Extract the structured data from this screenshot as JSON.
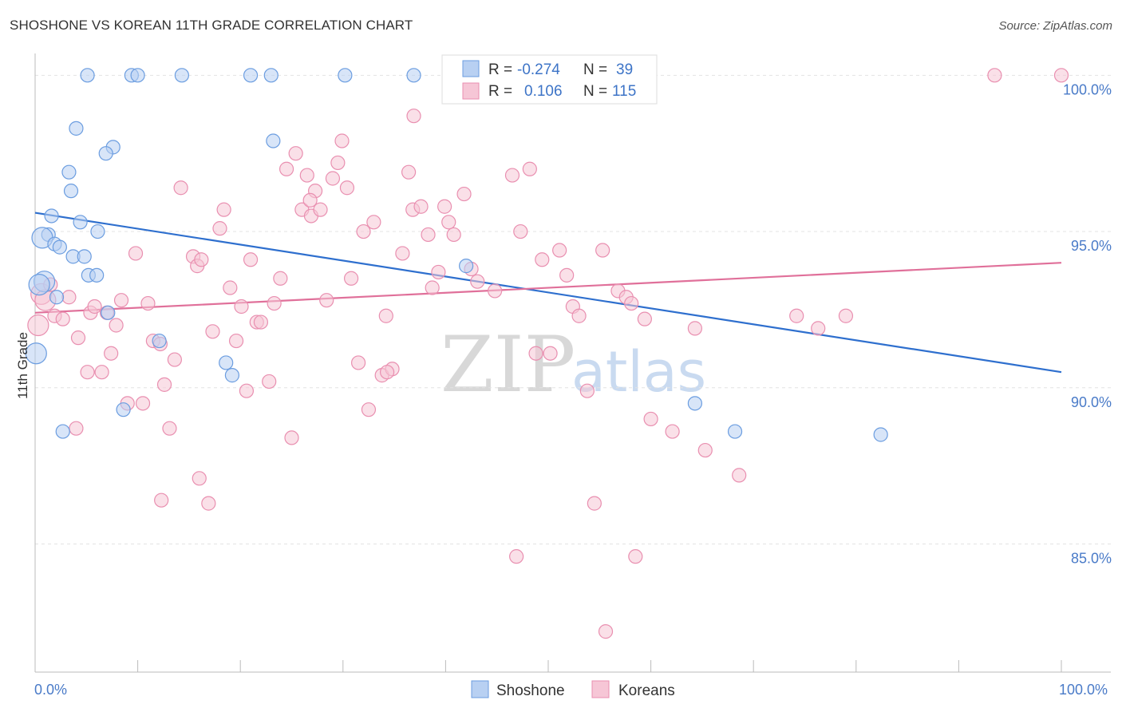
{
  "title": "SHOSHONE VS KOREAN 11TH GRADE CORRELATION CHART",
  "source": "Source: ZipAtlas.com",
  "watermark": {
    "zip": "ZIP",
    "atlas": "atlas"
  },
  "chart_data": {
    "type": "scatter",
    "ylabel": "11th Grade",
    "xlim": [
      0,
      100
    ],
    "ylim": [
      80.9,
      100.8
    ],
    "x_tick_labels": [
      "0.0%",
      "100.0%"
    ],
    "y_ticks": [
      {
        "value": 100,
        "label": "100.0%"
      },
      {
        "value": 95,
        "label": "95.0%"
      },
      {
        "value": 90,
        "label": "90.0%"
      },
      {
        "value": 85,
        "label": "85.0%"
      }
    ],
    "grid": true,
    "legend": {
      "placement": "top-center",
      "rows": [
        {
          "r_label": "R =",
          "r_value": "-0.274",
          "n_label": "N =",
          "n_value": "39"
        },
        {
          "r_label": "R =",
          "r_value": "0.106",
          "n_label": "N =",
          "n_value": "115"
        }
      ]
    },
    "series": [
      {
        "name": "Shoshone",
        "color": "#6b9de0",
        "fill": "#b8d0f2",
        "trend": {
          "x": [
            0,
            100
          ],
          "y": [
            95.6,
            90.5
          ],
          "color": "#2e6fce"
        },
        "points": [
          [
            5.1,
            100
          ],
          [
            9.4,
            100
          ],
          [
            10.0,
            100
          ],
          [
            14.3,
            100
          ],
          [
            21.0,
            100
          ],
          [
            23.0,
            100
          ],
          [
            30.2,
            100
          ],
          [
            36.9,
            100
          ],
          [
            4.0,
            98.3
          ],
          [
            7.6,
            97.7
          ],
          [
            6.9,
            97.5
          ],
          [
            23.2,
            97.9
          ],
          [
            3.3,
            96.9
          ],
          [
            3.5,
            96.3
          ],
          [
            1.6,
            95.5
          ],
          [
            4.4,
            95.3
          ],
          [
            6.1,
            95.0
          ],
          [
            1.3,
            94.9
          ],
          [
            0.7,
            94.8
          ],
          [
            1.9,
            94.6
          ],
          [
            2.4,
            94.5
          ],
          [
            3.7,
            94.2
          ],
          [
            4.8,
            94.2
          ],
          [
            5.2,
            93.6
          ],
          [
            6.0,
            93.6
          ],
          [
            0.9,
            93.4
          ],
          [
            2.1,
            92.9
          ],
          [
            7.1,
            92.4
          ],
          [
            12.1,
            91.5
          ],
          [
            18.6,
            90.8
          ],
          [
            19.2,
            90.4
          ],
          [
            8.6,
            89.3
          ],
          [
            2.7,
            88.6
          ],
          [
            42.0,
            93.9
          ],
          [
            64.3,
            89.5
          ],
          [
            68.2,
            88.6
          ],
          [
            82.4,
            88.5
          ],
          [
            0.1,
            91.1
          ],
          [
            0.4,
            93.3
          ]
        ]
      },
      {
        "name": "Koreans",
        "color": "#e98fb0",
        "fill": "#f6c6d6",
        "trend": {
          "x": [
            0,
            100
          ],
          "y": [
            92.4,
            94.0
          ],
          "color": "#e0709a"
        },
        "points": [
          [
            0.3,
            92.0
          ],
          [
            0.6,
            93.0
          ],
          [
            1.0,
            92.8
          ],
          [
            1.5,
            93.3
          ],
          [
            1.9,
            92.3
          ],
          [
            2.7,
            92.2
          ],
          [
            3.3,
            92.9
          ],
          [
            4.2,
            91.6
          ],
          [
            5.4,
            92.4
          ],
          [
            5.8,
            92.6
          ],
          [
            6.5,
            90.5
          ],
          [
            5.1,
            90.5
          ],
          [
            4.0,
            88.7
          ],
          [
            7.0,
            92.4
          ],
          [
            7.4,
            91.1
          ],
          [
            7.9,
            92.0
          ],
          [
            8.4,
            92.8
          ],
          [
            9.0,
            89.5
          ],
          [
            9.8,
            94.3
          ],
          [
            10.5,
            89.5
          ],
          [
            11.0,
            92.7
          ],
          [
            11.5,
            91.5
          ],
          [
            12.2,
            91.4
          ],
          [
            12.6,
            90.1
          ],
          [
            13.1,
            88.7
          ],
          [
            13.6,
            90.9
          ],
          [
            14.2,
            96.4
          ],
          [
            15.4,
            94.2
          ],
          [
            15.8,
            93.9
          ],
          [
            16.2,
            94.1
          ],
          [
            16.9,
            86.3
          ],
          [
            17.3,
            91.8
          ],
          [
            18.0,
            95.1
          ],
          [
            18.4,
            95.7
          ],
          [
            19.0,
            93.2
          ],
          [
            19.6,
            91.5
          ],
          [
            20.1,
            92.6
          ],
          [
            20.6,
            89.9
          ],
          [
            21.0,
            94.1
          ],
          [
            21.6,
            92.1
          ],
          [
            22.0,
            92.1
          ],
          [
            22.8,
            90.2
          ],
          [
            23.3,
            92.7
          ],
          [
            23.9,
            93.5
          ],
          [
            24.5,
            97.0
          ],
          [
            25.0,
            88.4
          ],
          [
            25.4,
            97.5
          ],
          [
            26.0,
            95.7
          ],
          [
            26.5,
            96.8
          ],
          [
            26.9,
            95.5
          ],
          [
            27.3,
            96.3
          ],
          [
            27.8,
            95.7
          ],
          [
            28.4,
            92.8
          ],
          [
            29.0,
            96.7
          ],
          [
            29.5,
            97.2
          ],
          [
            29.9,
            97.9
          ],
          [
            30.4,
            96.4
          ],
          [
            30.8,
            93.5
          ],
          [
            31.5,
            90.8
          ],
          [
            32.0,
            95.0
          ],
          [
            32.5,
            89.3
          ],
          [
            33.0,
            95.3
          ],
          [
            33.8,
            90.4
          ],
          [
            34.2,
            92.3
          ],
          [
            34.8,
            90.6
          ],
          [
            35.8,
            94.3
          ],
          [
            36.4,
            96.9
          ],
          [
            36.8,
            95.7
          ],
          [
            37.6,
            95.8
          ],
          [
            38.3,
            94.9
          ],
          [
            38.7,
            93.2
          ],
          [
            39.3,
            93.7
          ],
          [
            39.9,
            95.8
          ],
          [
            40.3,
            95.3
          ],
          [
            40.8,
            94.9
          ],
          [
            41.8,
            96.2
          ],
          [
            42.5,
            93.8
          ],
          [
            43.1,
            93.4
          ],
          [
            44.8,
            93.1
          ],
          [
            46.5,
            96.8
          ],
          [
            46.9,
            84.6
          ],
          [
            47.3,
            95.0
          ],
          [
            48.2,
            97.0
          ],
          [
            48.8,
            91.1
          ],
          [
            49.4,
            94.1
          ],
          [
            50.2,
            91.1
          ],
          [
            51.1,
            94.4
          ],
          [
            51.8,
            93.6
          ],
          [
            52.4,
            92.6
          ],
          [
            53.0,
            92.3
          ],
          [
            53.8,
            89.9
          ],
          [
            54.5,
            86.3
          ],
          [
            55.3,
            94.4
          ],
          [
            56.8,
            93.1
          ],
          [
            57.6,
            92.9
          ],
          [
            58.1,
            92.7
          ],
          [
            58.5,
            84.6
          ],
          [
            59.4,
            92.2
          ],
          [
            60.0,
            89.0
          ],
          [
            62.1,
            88.6
          ],
          [
            65.3,
            88.0
          ],
          [
            68.6,
            87.2
          ],
          [
            74.2,
            92.3
          ],
          [
            76.3,
            91.9
          ],
          [
            79.0,
            92.3
          ],
          [
            93.5,
            100
          ],
          [
            100.0,
            100
          ],
          [
            44.3,
            100
          ],
          [
            41.9,
            99.9
          ],
          [
            36.9,
            98.7
          ],
          [
            16.0,
            87.1
          ],
          [
            12.3,
            86.4
          ],
          [
            55.6,
            82.2
          ],
          [
            64.3,
            91.9
          ],
          [
            26.8,
            96.0
          ],
          [
            34.3,
            90.5
          ]
        ]
      }
    ]
  }
}
